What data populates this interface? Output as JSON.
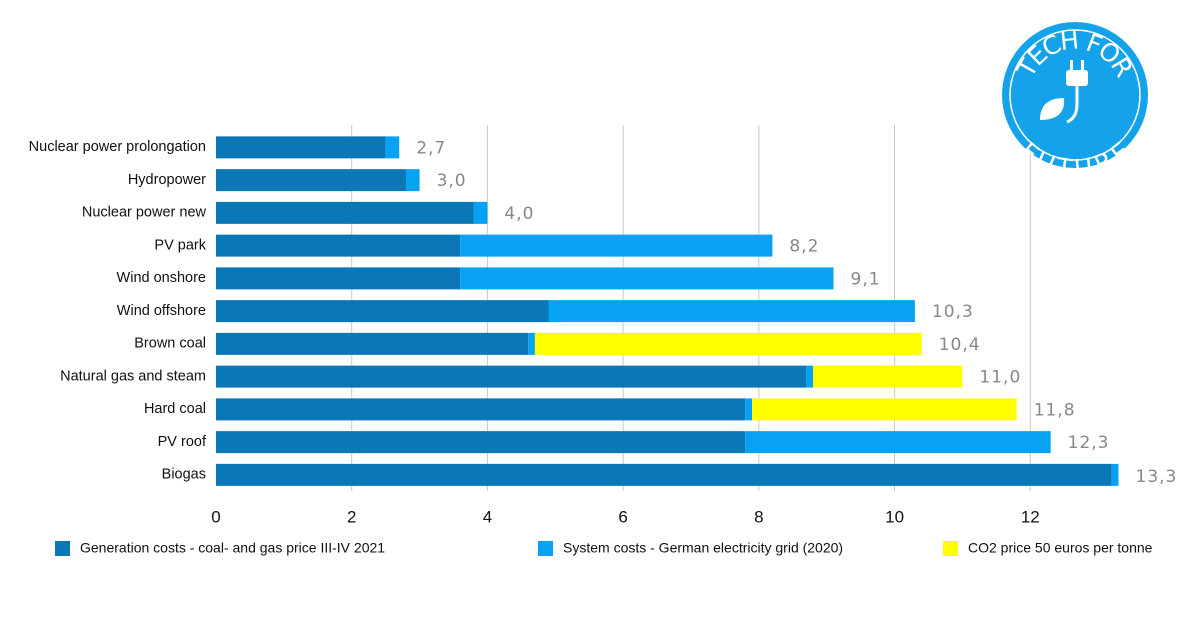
{
  "chart_data": {
    "type": "stacked-barh",
    "categories": [
      "Nuclear power prolongation",
      "Hydropower",
      "Nuclear power new",
      "PV park",
      "Wind onshore",
      "Wind offshore",
      "Brown coal",
      "Natural gas and steam",
      "Hard coal",
      "PV roof",
      "Biogas"
    ],
    "series": [
      {
        "name": "Generation costs - coal- and gas price III-IV 2021",
        "color": "#0a77b7",
        "values": [
          2.5,
          2.8,
          3.8,
          3.6,
          3.6,
          4.9,
          4.6,
          8.7,
          7.8,
          7.8,
          13.2
        ]
      },
      {
        "name": "System costs - German electricity grid (2020)",
        "color": "#08a2f2",
        "values": [
          0.2,
          0.2,
          0.2,
          4.6,
          5.5,
          5.4,
          0.1,
          0.1,
          0.1,
          4.5,
          0.1
        ]
      },
      {
        "name": "CO2 price 50 euros per tonne",
        "color": "#ffff00",
        "values": [
          0,
          0,
          0,
          0,
          0,
          0,
          5.7,
          2.2,
          3.9,
          0,
          0
        ]
      }
    ],
    "totals": [
      2.7,
      3.0,
      4.0,
      8.2,
      9.1,
      10.3,
      10.4,
      11.0,
      11.8,
      12.3,
      13.3
    ],
    "total_labels": [
      "2,7",
      "3,0",
      "4,0",
      "8,2",
      "9,1",
      "10,3",
      "10,4",
      "11,0",
      "11,8",
      "12,3",
      "13,3"
    ],
    "xlim": [
      0,
      14
    ],
    "xticks": [
      0,
      2,
      4,
      6,
      8,
      10,
      12
    ],
    "grid": true,
    "legend": "bottom",
    "logo": {
      "top": "TECH FOR",
      "bottom": "FUTURE",
      "color": "#14a3ea"
    }
  }
}
